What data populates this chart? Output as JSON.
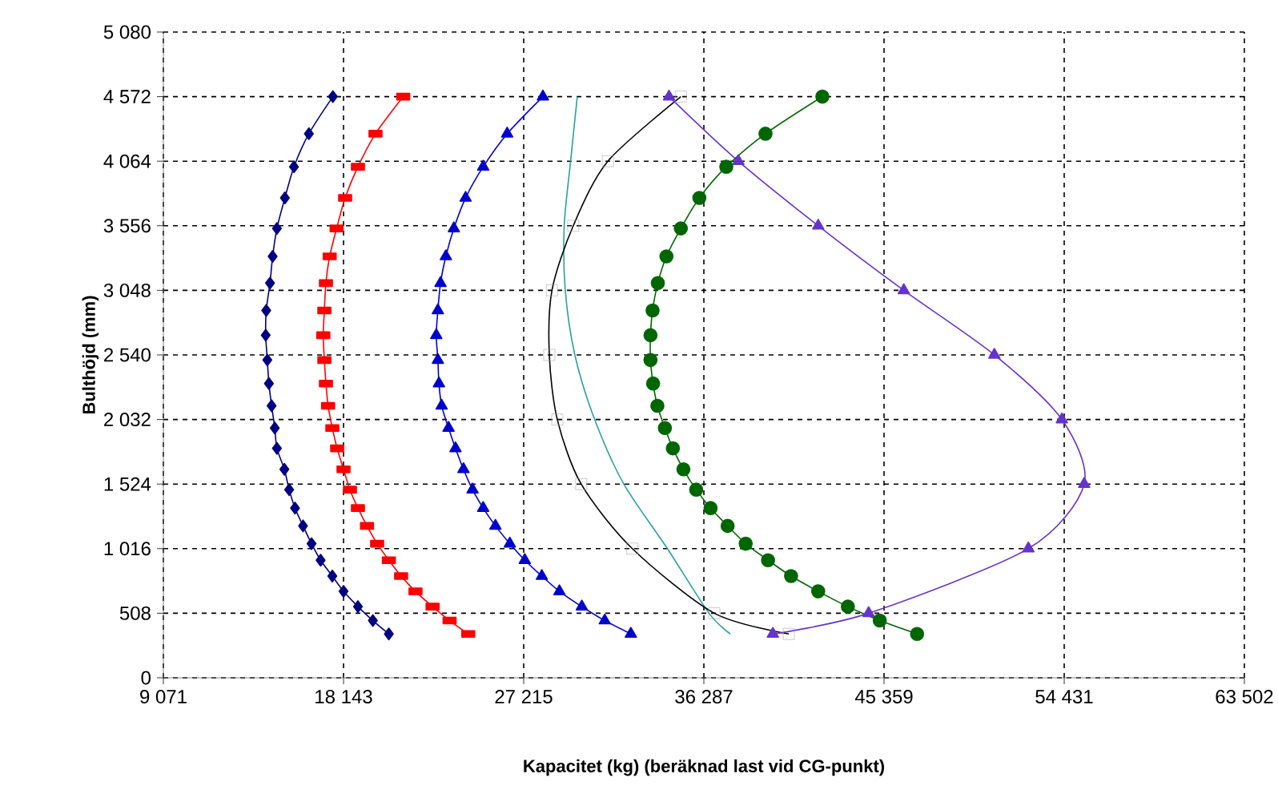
{
  "chart_data": {
    "type": "line",
    "xlabel": "Kapacitet (kg) (beräknad last vid CG-punkt)",
    "ylabel": "Bulthöjd (mm)",
    "xlim": [
      9071,
      63502
    ],
    "ylim": [
      0,
      5080
    ],
    "xticks": [
      {
        "value": 9071,
        "label": "9 071"
      },
      {
        "value": 18143,
        "label": "18 143"
      },
      {
        "value": 27215,
        "label": "27 215"
      },
      {
        "value": 36287,
        "label": "36 287"
      },
      {
        "value": 45359,
        "label": "45 359"
      },
      {
        "value": 54431,
        "label": "54 431"
      },
      {
        "value": 63502,
        "label": "63 502"
      }
    ],
    "yticks": [
      0,
      508,
      {
        "value": 1016,
        "label": "1 016"
      },
      {
        "value": 1524,
        "label": "1 524"
      },
      {
        "value": 2032,
        "label": "2 032"
      },
      {
        "value": 2540,
        "label": "2 540"
      },
      {
        "value": 3048,
        "label": "3 048"
      },
      {
        "value": 3556,
        "label": "3 556"
      },
      {
        "value": 4064,
        "label": "4 064"
      },
      {
        "value": 4572,
        "label": "4 572"
      },
      {
        "value": 5080,
        "label": "5 080"
      }
    ],
    "grid": true,
    "series": [
      {
        "color": "#000080",
        "marker": "diamond",
        "x": [
          17606,
          16398,
          15647,
          15191,
          14788,
          14573,
          14439,
          14251,
          14224,
          14305,
          14385,
          14520,
          14681,
          14788,
          15164,
          15405,
          15700,
          16103,
          16533,
          16989,
          17579,
          18143,
          18868,
          19619,
          20424
        ],
        "values": [
          4572,
          4280,
          4020,
          3775,
          3535,
          3315,
          3105,
          2890,
          2695,
          2500,
          2315,
          2140,
          1965,
          1805,
          1640,
          1480,
          1335,
          1195,
          1055,
          925,
          800,
          680,
          560,
          450,
          345
        ]
      },
      {
        "color": "#ff0000",
        "marker": "square",
        "x": [
          21149,
          19753,
          18868,
          18223,
          17794,
          17445,
          17257,
          17177,
          17123,
          17177,
          17257,
          17365,
          17579,
          17821,
          18143,
          18465,
          18868,
          19324,
          19834,
          20424,
          21041,
          21766,
          22625,
          23484,
          24423
        ],
        "values": [
          4572,
          4280,
          4020,
          3775,
          3535,
          3315,
          3105,
          2890,
          2695,
          2500,
          2315,
          2140,
          1965,
          1805,
          1640,
          1480,
          1335,
          1195,
          1055,
          925,
          800,
          680,
          560,
          450,
          345
        ]
      },
      {
        "color": "#0000cc",
        "marker": "triangle",
        "x": [
          28182,
          26383,
          25175,
          24289,
          23699,
          23296,
          23027,
          22893,
          22813,
          22893,
          22947,
          23082,
          23431,
          23780,
          24182,
          24639,
          25175,
          25792,
          26517,
          27269,
          28128,
          29014,
          30141,
          31295,
          32610
        ],
        "values": [
          4572,
          4280,
          4020,
          3775,
          3535,
          3315,
          3105,
          2890,
          2695,
          2500,
          2315,
          2140,
          1965,
          1805,
          1640,
          1480,
          1335,
          1195,
          1055,
          925,
          800,
          680,
          560,
          450,
          345
        ]
      },
      {
        "color": "#2aa0a0",
        "marker": "none",
        "x": [
          29912,
          29577,
          29255,
          29309,
          29791,
          30787,
          32255,
          34451,
          36544,
          37620
        ],
        "values": [
          4572,
          4064,
          3556,
          3048,
          2540,
          2032,
          1524,
          1016,
          508,
          345
        ]
      },
      {
        "color": "#000000",
        "marker": "square",
        "x": [
          35127,
          31452,
          29710,
          28638,
          28504,
          28906,
          30110,
          32684,
          36812,
          40564
        ],
        "values": [
          4572,
          4064,
          3556,
          3048,
          2540,
          2032,
          1524,
          1016,
          508,
          345
        ]
      },
      {
        "color": "#6633cc",
        "marker": "triangle",
        "x": [
          34533,
          38022,
          42044,
          46354,
          50914,
          54311,
          55437,
          52625,
          44583,
          39760
        ],
        "values": [
          4572,
          4064,
          3556,
          3048,
          2540,
          2032,
          1524,
          1016,
          508,
          345
        ]
      },
      {
        "color": "#006600",
        "marker": "circle",
        "x": [
          42253,
          39390,
          37416,
          36060,
          35127,
          34403,
          33969,
          33704,
          33599,
          33599,
          33730,
          33946,
          34324,
          34726,
          35257,
          35900,
          36624,
          37484,
          38393,
          39519,
          40677,
          42044,
          43538,
          45144,
          47022
        ],
        "values": [
          4572,
          4280,
          4020,
          3775,
          3535,
          3315,
          3105,
          2890,
          2695,
          2500,
          2315,
          2140,
          1965,
          1805,
          1640,
          1480,
          1335,
          1195,
          1055,
          925,
          800,
          680,
          560,
          450,
          345
        ]
      }
    ]
  }
}
